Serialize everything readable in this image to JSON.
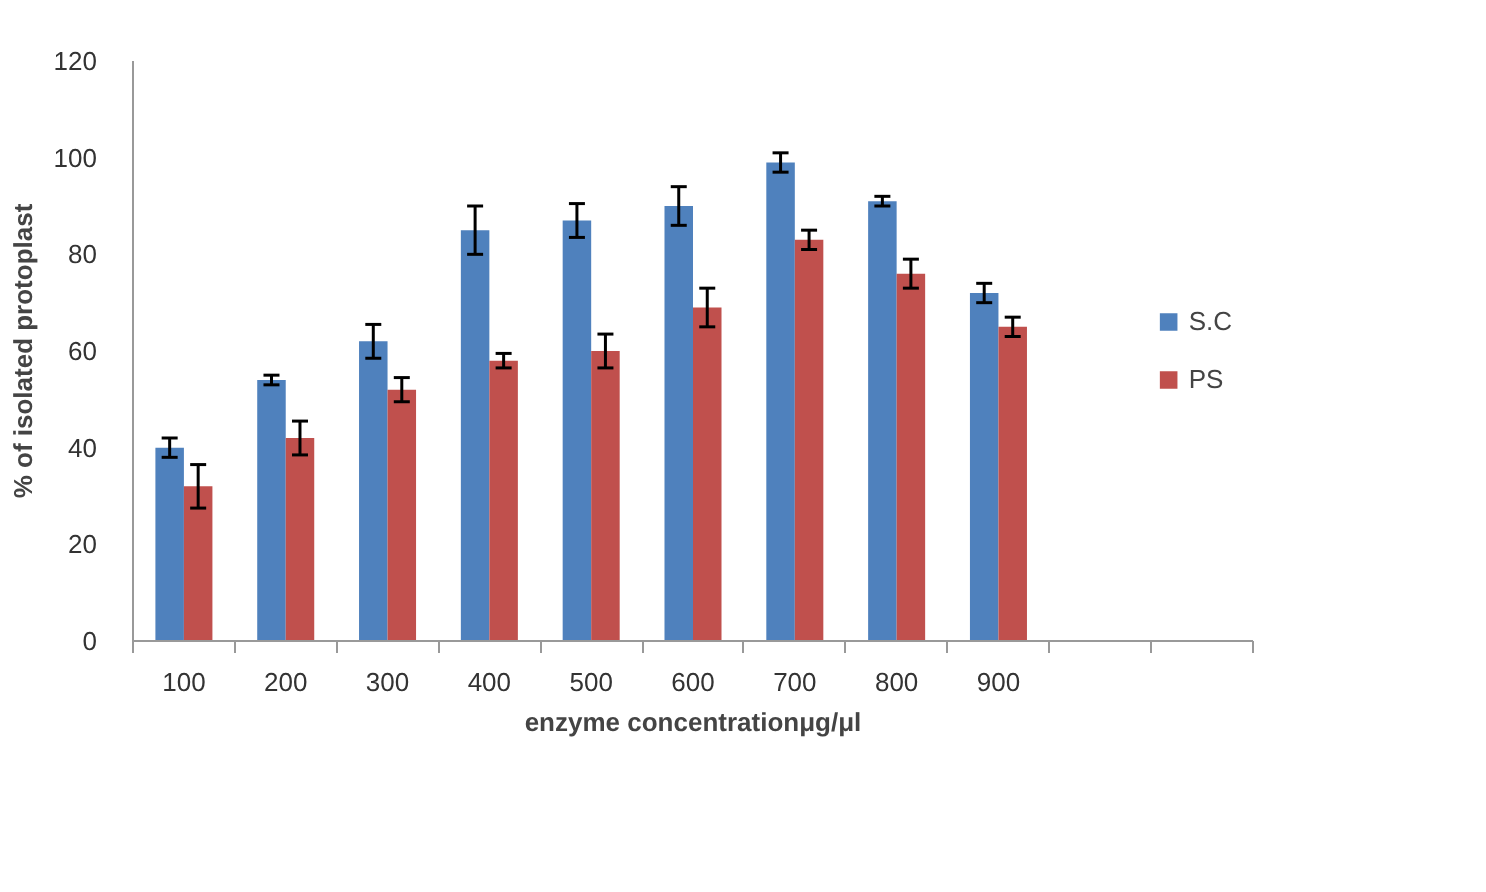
{
  "chart_data": {
    "type": "bar",
    "categories": [
      "100",
      "200",
      "300",
      "400",
      "500",
      "600",
      "700",
      "800",
      "900",
      null,
      null
    ],
    "xlabel": "enzyme concentrationμg/μl",
    "ylabel": "% of isolated protoplast",
    "series": [
      {
        "name": "S.C",
        "color": "#4f81bd",
        "values": [
          40,
          54,
          62,
          85,
          87,
          90,
          99,
          91,
          72,
          null,
          null
        ],
        "errors": [
          2,
          1,
          3.5,
          5,
          3.5,
          4,
          2,
          1,
          2,
          null,
          null
        ]
      },
      {
        "name": "PS",
        "color": "#c0504d",
        "values": [
          32,
          42,
          52,
          58,
          60,
          69,
          83,
          76,
          65,
          null,
          null
        ],
        "errors": [
          4.5,
          3.5,
          2.5,
          1.5,
          3.5,
          4,
          2,
          3,
          2,
          null,
          null
        ]
      }
    ],
    "ylim": [
      0,
      120
    ],
    "yticks": [
      0,
      20,
      40,
      60,
      80,
      100,
      120
    ],
    "grid": false,
    "legend": "right"
  }
}
